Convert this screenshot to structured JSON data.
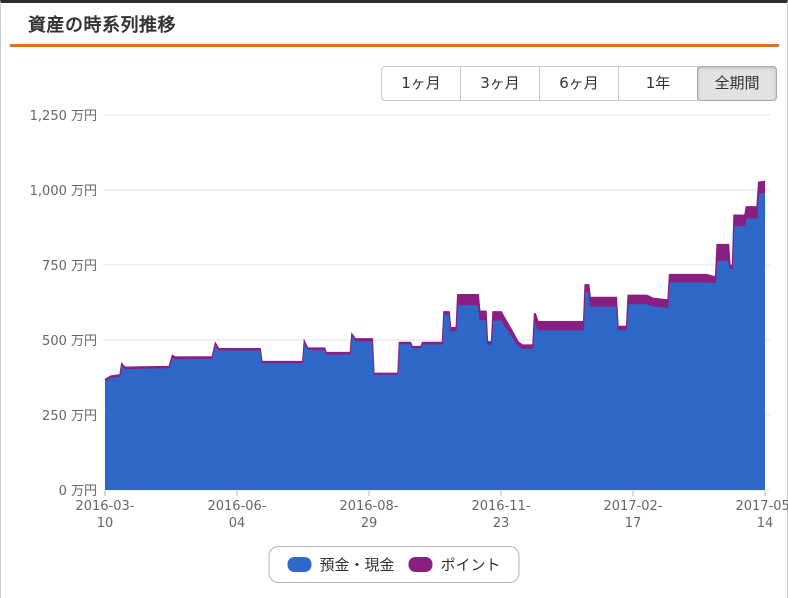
{
  "page": {
    "title": "資産の時系列推移",
    "accent_color": "#e2711d"
  },
  "range_buttons": {
    "items": [
      {
        "label": "1ヶ月",
        "selected": false
      },
      {
        "label": "3ヶ月",
        "selected": false
      },
      {
        "label": "6ヶ月",
        "selected": false
      },
      {
        "label": "1年",
        "selected": false
      },
      {
        "label": "全期間",
        "selected": true
      }
    ]
  },
  "legend": {
    "items": [
      {
        "label": "預金・現金",
        "color": "#2e68c9"
      },
      {
        "label": "ポイント",
        "color": "#8a1f82"
      }
    ]
  },
  "chart_data": {
    "type": "area",
    "stacked": true,
    "title": "資産の時系列推移",
    "unit": "万円",
    "ylim": [
      0,
      1250
    ],
    "grid": true,
    "legend_position": "bottom",
    "y_ticks": [
      {
        "value": 0,
        "label": "0 万円"
      },
      {
        "value": 250,
        "label": "250 万円"
      },
      {
        "value": 500,
        "label": "500 万円"
      },
      {
        "value": 750,
        "label": "750 万円"
      },
      {
        "value": 1000,
        "label": "1,000 万円"
      },
      {
        "value": 1250,
        "label": "1,250 万円"
      }
    ],
    "x_ticks": [
      "2016-03-10",
      "2016-06-04",
      "2016-08-29",
      "2016-11-23",
      "2017-02-17",
      "2017-05-14"
    ],
    "x_range": [
      "2016-03-10",
      "2017-05-14"
    ],
    "colors": {
      "deposits": "#2e68c9",
      "points": "#8a1f82"
    },
    "series_names": {
      "deposits": "預金・現金",
      "points": "ポイント"
    },
    "points": [
      [
        "2016-03-10",
        362,
        5
      ],
      [
        "2016-03-14",
        374,
        5
      ],
      [
        "2016-03-20",
        378,
        5
      ],
      [
        "2016-03-21",
        414,
        5
      ],
      [
        "2016-03-23",
        403,
        5
      ],
      [
        "2016-04-21",
        406,
        5
      ],
      [
        "2016-04-23",
        441,
        6
      ],
      [
        "2016-04-25",
        436,
        6
      ],
      [
        "2016-05-19",
        437,
        6
      ],
      [
        "2016-05-21",
        483,
        4
      ],
      [
        "2016-05-23",
        465,
        5
      ],
      [
        "2016-06-19",
        465,
        5
      ],
      [
        "2016-06-20",
        423,
        4
      ],
      [
        "2016-07-17",
        423,
        4
      ],
      [
        "2016-07-18",
        489,
        4
      ],
      [
        "2016-07-20",
        467,
        5
      ],
      [
        "2016-07-31",
        467,
        5
      ],
      [
        "2016-08-01",
        451,
        6
      ],
      [
        "2016-08-17",
        451,
        6
      ],
      [
        "2016-08-18",
        513,
        4
      ],
      [
        "2016-08-20",
        496,
        7
      ],
      [
        "2016-08-31",
        496,
        7
      ],
      [
        "2016-09-01",
        384,
        4
      ],
      [
        "2016-09-17",
        384,
        4
      ],
      [
        "2016-09-18",
        486,
        5
      ],
      [
        "2016-09-25",
        486,
        5
      ],
      [
        "2016-09-26",
        473,
        4
      ],
      [
        "2016-10-02",
        473,
        4
      ],
      [
        "2016-10-03",
        485,
        6
      ],
      [
        "2016-10-16",
        485,
        6
      ],
      [
        "2016-10-17",
        584,
        9
      ],
      [
        "2016-10-20",
        584,
        9
      ],
      [
        "2016-10-21",
        529,
        11
      ],
      [
        "2016-10-25",
        529,
        11
      ],
      [
        "2016-10-26",
        616,
        34
      ],
      [
        "2016-11-08",
        616,
        34
      ],
      [
        "2016-11-09",
        566,
        29
      ],
      [
        "2016-11-13",
        566,
        29
      ],
      [
        "2016-11-14",
        484,
        9
      ],
      [
        "2016-11-17",
        484,
        9
      ],
      [
        "2016-11-18",
        564,
        29
      ],
      [
        "2016-11-23",
        564,
        29
      ],
      [
        "2016-11-26",
        541,
        25
      ],
      [
        "2016-11-30",
        512,
        19
      ],
      [
        "2016-12-04",
        480,
        13
      ],
      [
        "2016-12-07",
        471,
        11
      ],
      [
        "2016-12-14",
        471,
        11
      ],
      [
        "2016-12-15",
        560,
        29
      ],
      [
        "2016-12-17",
        532,
        28
      ],
      [
        "2017-01-16",
        532,
        28
      ],
      [
        "2017-01-17",
        659,
        24
      ],
      [
        "2017-01-19",
        659,
        24
      ],
      [
        "2017-01-20",
        611,
        30
      ],
      [
        "2017-02-06",
        611,
        30
      ],
      [
        "2017-02-07",
        533,
        11
      ],
      [
        "2017-02-13",
        533,
        11
      ],
      [
        "2017-02-14",
        619,
        29
      ],
      [
        "2017-02-26",
        619,
        29
      ],
      [
        "2017-03-02",
        612,
        26
      ],
      [
        "2017-03-12",
        607,
        25
      ],
      [
        "2017-03-13",
        692,
        25
      ],
      [
        "2017-04-06",
        692,
        25
      ],
      [
        "2017-04-10",
        690,
        21
      ],
      [
        "2017-04-12",
        690,
        21
      ],
      [
        "2017-04-13",
        764,
        53
      ],
      [
        "2017-04-20",
        764,
        53
      ],
      [
        "2017-04-21",
        737,
        11
      ],
      [
        "2017-04-23",
        737,
        11
      ],
      [
        "2017-04-24",
        879,
        36
      ],
      [
        "2017-05-01",
        879,
        36
      ],
      [
        "2017-05-02",
        905,
        38
      ],
      [
        "2017-05-09",
        905,
        38
      ],
      [
        "2017-05-10",
        987,
        38
      ],
      [
        "2017-05-14",
        990,
        38
      ]
    ]
  }
}
